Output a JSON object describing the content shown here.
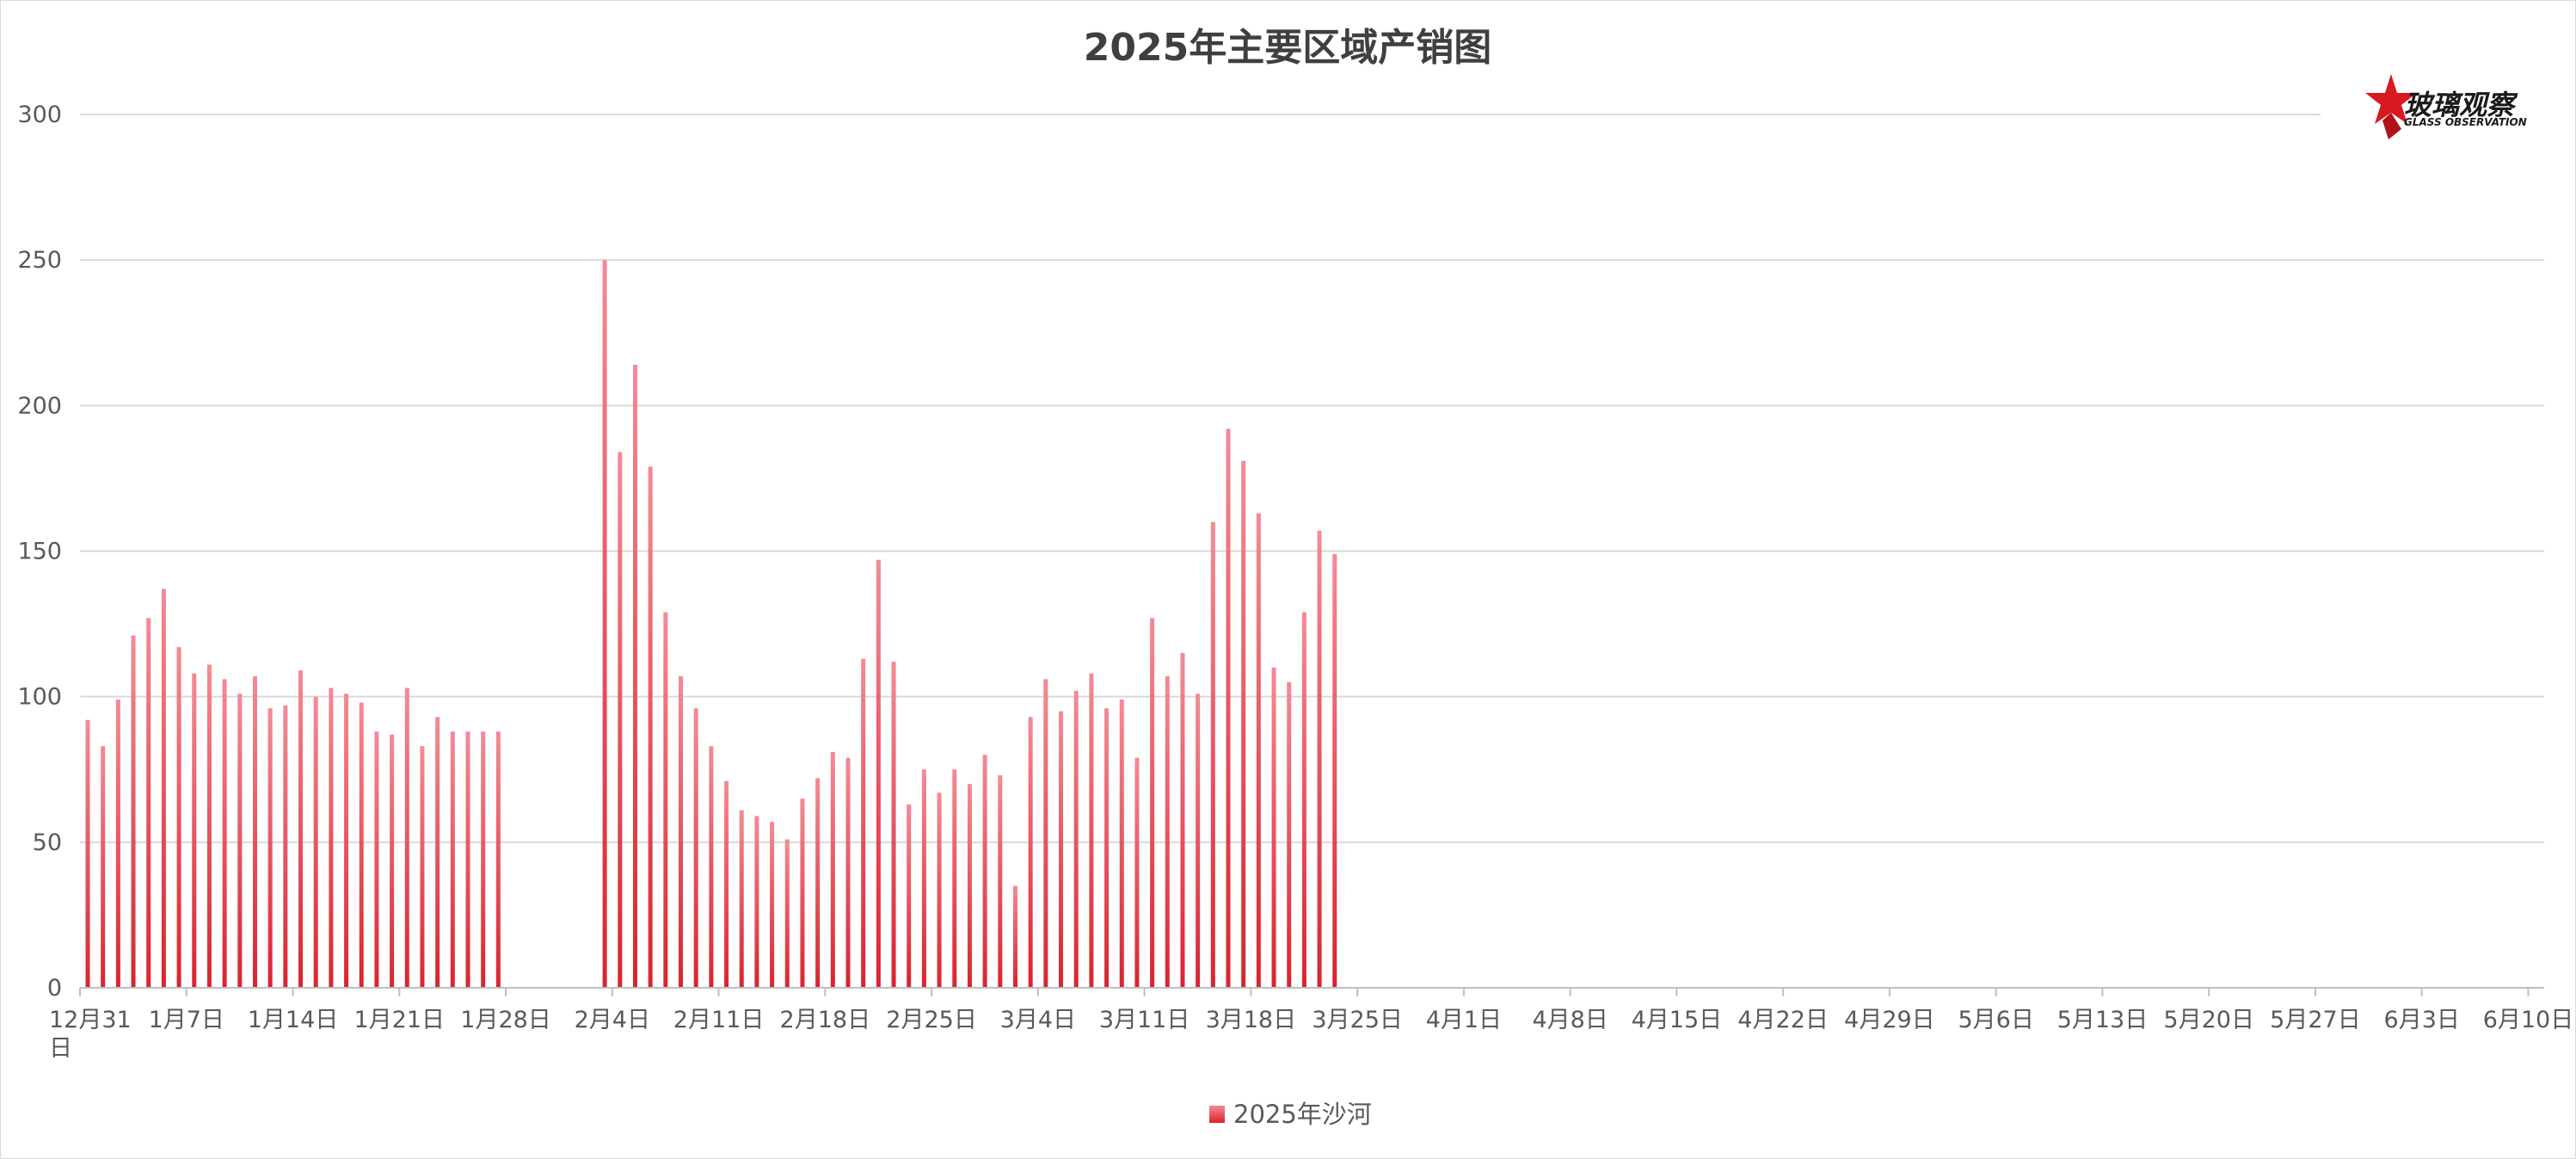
{
  "chart_data": {
    "type": "bar",
    "title": "2025年主要区域产销图",
    "xlabel": "",
    "ylabel": "",
    "ylim": [
      0,
      300
    ],
    "y_ticks": [
      "0",
      "50",
      "100",
      "150",
      "200",
      "250",
      "300"
    ],
    "x_tick_labels": [
      "12月31日",
      "1月7日",
      "1月14日",
      "1月21日",
      "1月28日",
      "2月4日",
      "2月11日",
      "2月18日",
      "2月25日",
      "3月4日",
      "3月11日",
      "3月18日",
      "3月25日",
      "4月1日",
      "4月8日",
      "4月15日",
      "4月22日",
      "4月29日",
      "5月6日",
      "5月13日",
      "5月20日",
      "5月27日",
      "6月3日",
      "6月10日"
    ],
    "grid": true,
    "legend_position": "bottom",
    "series": [
      {
        "name": "2025年沙河",
        "color": "#e8303f",
        "points": [
          [
            "12月31日",
            92
          ],
          [
            "1月1日",
            83
          ],
          [
            "1月2日",
            99
          ],
          [
            "1月3日",
            121
          ],
          [
            "1月4日",
            127
          ],
          [
            "1月5日",
            137
          ],
          [
            "1月6日",
            117
          ],
          [
            "1月7日",
            108
          ],
          [
            "1月8日",
            111
          ],
          [
            "1月9日",
            106
          ],
          [
            "1月10日",
            101
          ],
          [
            "1月11日",
            107
          ],
          [
            "1月12日",
            96
          ],
          [
            "1月13日",
            97
          ],
          [
            "1月14日",
            109
          ],
          [
            "1月15日",
            100
          ],
          [
            "1月16日",
            103
          ],
          [
            "1月17日",
            101
          ],
          [
            "1月18日",
            98
          ],
          [
            "1月19日",
            88
          ],
          [
            "1月20日",
            87
          ],
          [
            "1月21日",
            103
          ],
          [
            "1月22日",
            83
          ],
          [
            "1月23日",
            93
          ],
          [
            "1月24日",
            88
          ],
          [
            "1月25日",
            88
          ],
          [
            "1月26日",
            88
          ],
          [
            "1月27日",
            88
          ],
          [
            "2月3日",
            250
          ],
          [
            "2月4日",
            184
          ],
          [
            "2月5日",
            214
          ],
          [
            "2月6日",
            179
          ],
          [
            "2月7日",
            129
          ],
          [
            "2月8日",
            107
          ],
          [
            "2月9日",
            96
          ],
          [
            "2月10日",
            83
          ],
          [
            "2月11日",
            71
          ],
          [
            "2月12日",
            61
          ],
          [
            "2月13日",
            59
          ],
          [
            "2月14日",
            57
          ],
          [
            "2月15日",
            51
          ],
          [
            "2月16日",
            65
          ],
          [
            "2月17日",
            72
          ],
          [
            "2月18日",
            81
          ],
          [
            "2月19日",
            79
          ],
          [
            "2月20日",
            113
          ],
          [
            "2月21日",
            147
          ],
          [
            "2月22日",
            112
          ],
          [
            "2月23日",
            63
          ],
          [
            "2月24日",
            75
          ],
          [
            "2月25日",
            67
          ],
          [
            "2月26日",
            75
          ],
          [
            "2月27日",
            70
          ],
          [
            "2月28日",
            80
          ],
          [
            "3月1日",
            73
          ],
          [
            "3月2日",
            35
          ],
          [
            "3月3日",
            93
          ],
          [
            "3月4日",
            106
          ],
          [
            "3月5日",
            95
          ],
          [
            "3月6日",
            102
          ],
          [
            "3月7日",
            108
          ],
          [
            "3月8日",
            96
          ],
          [
            "3月9日",
            99
          ],
          [
            "3月10日",
            79
          ],
          [
            "3月11日",
            127
          ],
          [
            "3月12日",
            107
          ],
          [
            "3月13日",
            115
          ],
          [
            "3月14日",
            101
          ],
          [
            "3月15日",
            160
          ],
          [
            "3月16日",
            192
          ],
          [
            "3月17日",
            181
          ],
          [
            "3月18日",
            163
          ],
          [
            "3月19日",
            110
          ],
          [
            "3月20日",
            105
          ],
          [
            "3月21日",
            129
          ],
          [
            "3月22日",
            157
          ],
          [
            "3月23日",
            149
          ]
        ]
      }
    ]
  },
  "logo": {
    "text_cn": "玻璃观察",
    "text_en": "GLASS OBSERVATION",
    "icon": "red-star-icon",
    "accent": "#d71920"
  }
}
